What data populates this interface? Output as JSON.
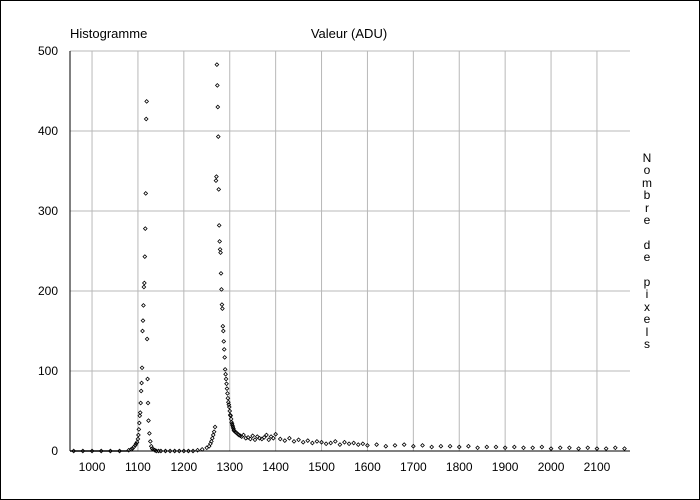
{
  "chart_data": {
    "type": "scatter",
    "title": "Histogramme",
    "xlabel": "Valeur (ADU)",
    "ylabel": "Nombre de pixels",
    "xlim": [
      952,
      2172
    ],
    "ylim": [
      0,
      500
    ],
    "xticks": [
      1000,
      1100,
      1200,
      1300,
      1400,
      1500,
      1600,
      1700,
      1800,
      1900,
      2000,
      2100
    ],
    "yticks": [
      0,
      100,
      200,
      300,
      400,
      500
    ],
    "grid": true,
    "series": [
      {
        "marker": "diamond",
        "x": [
          960,
          980,
          1000,
          1020,
          1040,
          1060,
          1080,
          1085,
          1088,
          1091,
          1094,
          1096,
          1098,
          1100,
          1101,
          1102,
          1103,
          1104,
          1105,
          1106,
          1107,
          1108,
          1109,
          1110,
          1111,
          1112,
          1113,
          1114,
          1115,
          1116,
          1117,
          1118,
          1119,
          1120,
          1121,
          1122,
          1123,
          1125,
          1127,
          1129,
          1131,
          1134,
          1137,
          1140,
          1145,
          1150,
          1160,
          1170,
          1180,
          1190,
          1200,
          1210,
          1220,
          1230,
          1240,
          1250,
          1255,
          1258,
          1260,
          1262,
          1264,
          1266,
          1268,
          1270,
          1271,
          1272,
          1273,
          1274,
          1275,
          1276,
          1277,
          1278,
          1279,
          1280,
          1281,
          1282,
          1283,
          1284,
          1285,
          1286,
          1287,
          1288,
          1289,
          1290,
          1291,
          1292,
          1293,
          1294,
          1295,
          1296,
          1297,
          1298,
          1299,
          1300,
          1301,
          1302,
          1303,
          1304,
          1305,
          1306,
          1307,
          1308,
          1309,
          1310,
          1312,
          1314,
          1316,
          1318,
          1320,
          1323,
          1326,
          1330,
          1335,
          1340,
          1345,
          1350,
          1355,
          1360,
          1365,
          1370,
          1375,
          1380,
          1385,
          1390,
          1395,
          1400,
          1410,
          1420,
          1430,
          1440,
          1450,
          1460,
          1470,
          1480,
          1490,
          1500,
          1510,
          1520,
          1530,
          1540,
          1550,
          1560,
          1570,
          1580,
          1590,
          1600,
          1620,
          1640,
          1660,
          1680,
          1700,
          1720,
          1740,
          1760,
          1780,
          1800,
          1820,
          1840,
          1860,
          1880,
          1900,
          1920,
          1940,
          1960,
          1980,
          2000,
          2020,
          2040,
          2060,
          2080,
          2100,
          2120,
          2140,
          2160
        ],
        "y": [
          0,
          0,
          0,
          0,
          0,
          0,
          1,
          2,
          3,
          5,
          7,
          9,
          11,
          15,
          20,
          27,
          35,
          44,
          48,
          60,
          75,
          85,
          104,
          150,
          163,
          182,
          205,
          210,
          243,
          278,
          322,
          415,
          437,
          140,
          90,
          60,
          38,
          22,
          12,
          6,
          3,
          2,
          1,
          0,
          0,
          0,
          0,
          0,
          0,
          0,
          0,
          0,
          0,
          1,
          2,
          4,
          6,
          9,
          12,
          16,
          20,
          24,
          30,
          338,
          343,
          483,
          457,
          430,
          393,
          327,
          282,
          262,
          252,
          248,
          222,
          202,
          183,
          178,
          156,
          150,
          137,
          127,
          117,
          102,
          96,
          90,
          84,
          78,
          72,
          66,
          61,
          58,
          55,
          50,
          45,
          44,
          40,
          36,
          34,
          32,
          30,
          28,
          26,
          25,
          24,
          23,
          22,
          21,
          20,
          19,
          18,
          20,
          16,
          17,
          15,
          19,
          14,
          18,
          16,
          15,
          17,
          20,
          14,
          18,
          16,
          21,
          15,
          13,
          16,
          12,
          14,
          11,
          13,
          10,
          12,
          11,
          9,
          10,
          12,
          8,
          11,
          9,
          10,
          8,
          9,
          7,
          8,
          6,
          7,
          8,
          6,
          7,
          5,
          6,
          6,
          5,
          6,
          4,
          5,
          5,
          4,
          5,
          4,
          4,
          5,
          3,
          4,
          4,
          3,
          4,
          3,
          3,
          4,
          3
        ]
      }
    ]
  }
}
